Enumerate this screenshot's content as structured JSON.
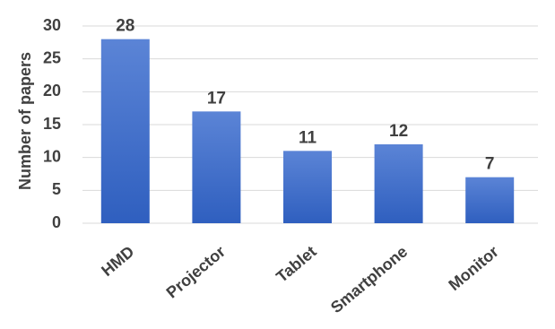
{
  "chart_data": {
    "type": "bar",
    "title": "",
    "xlabel": "",
    "ylabel": "Number of papers",
    "categories": [
      "HMD",
      "Projector",
      "Tablet",
      "Smartphone",
      "Monitor"
    ],
    "values": [
      28,
      17,
      11,
      12,
      7
    ],
    "ylim": [
      0,
      30
    ],
    "yticks": [
      0,
      5,
      10,
      15,
      20,
      25,
      30
    ],
    "grid": true,
    "legend": "none",
    "data_labels": true,
    "x_label_rotation": "45° counter-clockwise"
  },
  "colors": {
    "bar_top": "#5b84d6",
    "bar_bottom": "#2f5fbf",
    "text": "#404040",
    "grid": "#d9d9d9"
  }
}
